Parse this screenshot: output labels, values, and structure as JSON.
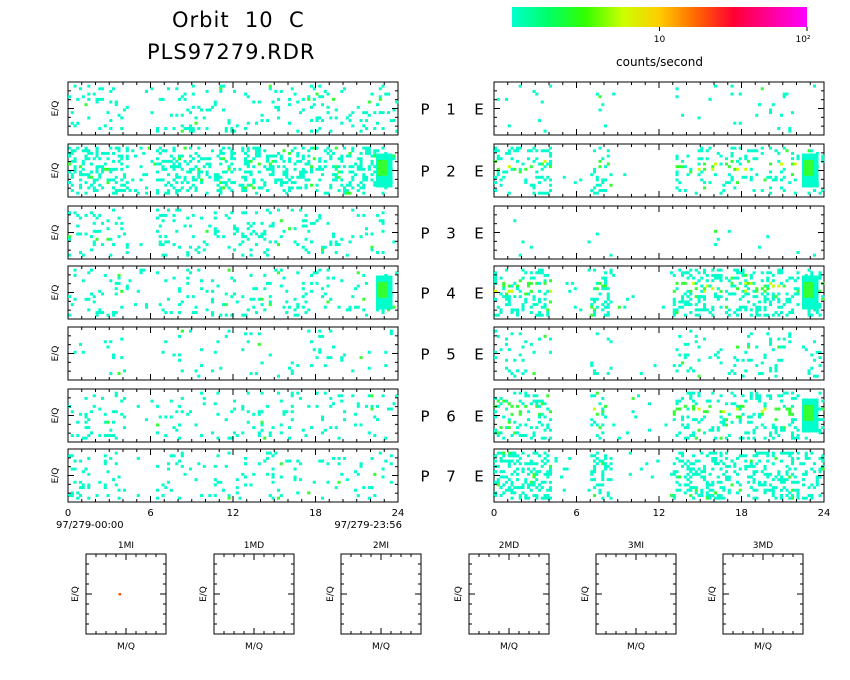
{
  "header": {
    "title_line1": "Orbit  10  C",
    "title_line2": "PLS97279.RDR"
  },
  "colorbar": {
    "tick_labels": [
      "10",
      "10²"
    ],
    "label": "counts/second",
    "colors": [
      "#00ffcc",
      "#00ff66",
      "#33ff00",
      "#ccff00",
      "#ffcc00",
      "#ff6600",
      "#ff0033",
      "#ff0099",
      "#ff00ff"
    ]
  },
  "chart_data": {
    "type": "heatmap",
    "colorbar_scale": "log",
    "x_ticks": [
      "0",
      "6",
      "12",
      "18",
      "24"
    ],
    "x_range_hours": [
      0,
      24
    ],
    "time_start": "97/279-00:00",
    "time_end": "97/279-23:56",
    "ylabel": "E/Q",
    "left_panels_label": "P",
    "right_panels_label": "E",
    "panel_numbers": [
      "1",
      "2",
      "3",
      "4",
      "5",
      "6",
      "7"
    ],
    "mini_panels": {
      "titles": [
        "1MI",
        "1MD",
        "2MI",
        "2MD",
        "3MI",
        "3MD"
      ],
      "xlabel": "M/Q",
      "ylabel": "E/Q",
      "points": [
        {
          "panel": "1MI",
          "mq_fraction": 0.42,
          "eq_fraction": 0.5,
          "color": "#ff5500"
        }
      ]
    },
    "left_density": [
      0.1,
      0.28,
      0.1,
      0.09,
      0.04,
      0.08,
      0.08
    ],
    "right_density": [
      0.01,
      0.07,
      0.004,
      0.12,
      0.03,
      0.09,
      0.14
    ],
    "high_count_bands_hours": [
      [
        0,
        4
      ],
      [
        7,
        8.5
      ],
      [
        13,
        17
      ],
      [
        17,
        22
      ],
      [
        22.3,
        24
      ]
    ]
  }
}
